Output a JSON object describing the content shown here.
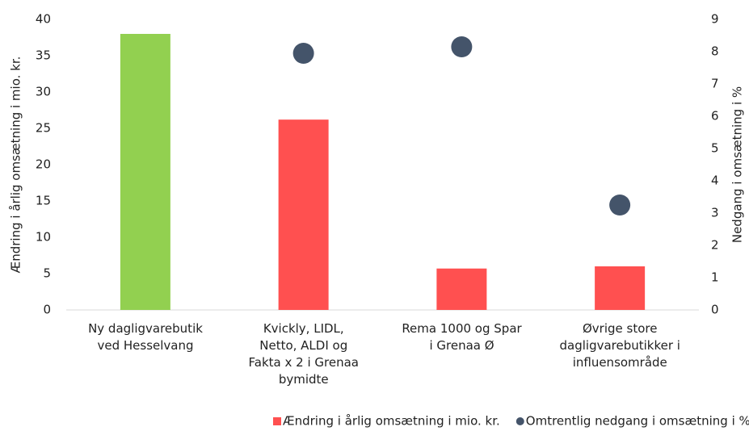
{
  "chart_data": {
    "type": "bar",
    "categories": [
      "Ny dagligvarebutik\nved Hesselvang",
      "Kvickly, LIDL,\nNetto, ALDI og\nFakta x 2 i Grenaa\nbymidte",
      "Rema 1000 og Spar\ni Grenaa Ø",
      "Øvrige store\ndagligvarebutikker i\ninfluensområde"
    ],
    "series": [
      {
        "name": "Ændring i årlig omsætning i mio. kr.",
        "type": "bar",
        "color": "#ff5050",
        "colors": [
          "#92d050",
          "#ff5050",
          "#ff5050",
          "#ff5050"
        ],
        "values": [
          38,
          26.2,
          5.7,
          6.0
        ]
      },
      {
        "name": "Omtrentlig nedgang i omsætning i %",
        "type": "scatter",
        "axis": "y2",
        "color": "#44546a",
        "values": [
          null,
          7.95,
          8.15,
          3.25
        ]
      }
    ],
    "ylabel": "Ændring i årlig omsætning i mio. kr.",
    "y2label": "Nedgang i omsætning i %",
    "ylim": [
      0,
      40
    ],
    "yticks": [
      0,
      5,
      10,
      15,
      20,
      25,
      30,
      35,
      40
    ],
    "y2lim": [
      0,
      9
    ],
    "y2ticks": [
      0,
      1,
      2,
      3,
      4,
      5,
      6,
      7,
      8,
      9
    ],
    "legend": "bottom"
  }
}
